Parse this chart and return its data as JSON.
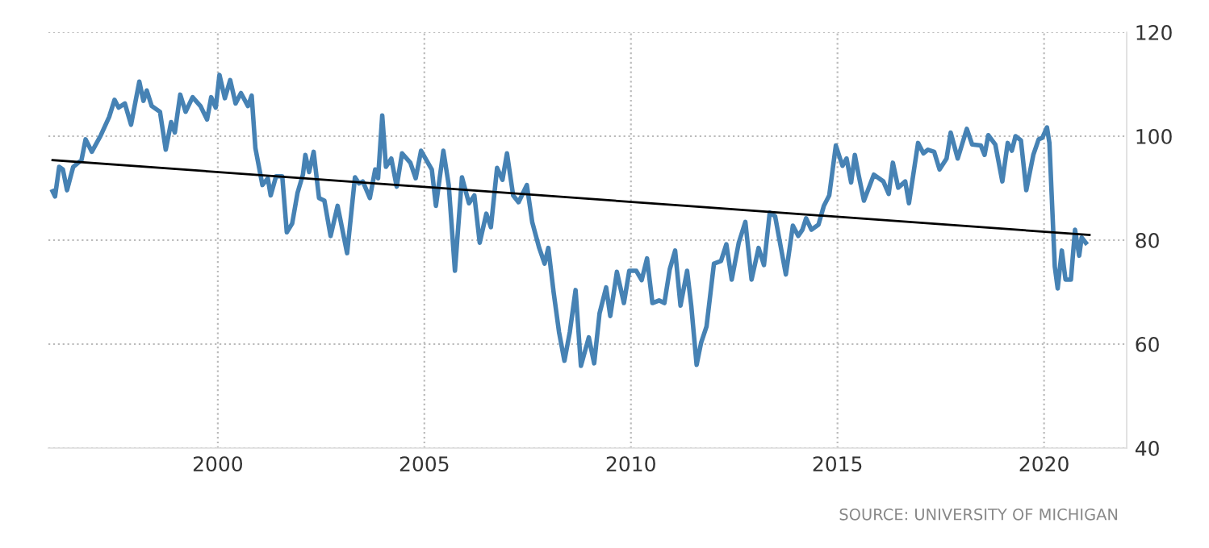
{
  "chart_data": {
    "type": "line",
    "series": [
      {
        "color": "#4682b4",
        "x": [
          1996.0,
          1996.06,
          1996.16,
          1996.25,
          1996.35,
          1996.5,
          1996.7,
          1996.8,
          1996.95,
          1997.17,
          1997.37,
          1997.5,
          1997.6,
          1997.75,
          1997.9,
          1998.1,
          1998.2,
          1998.28,
          1998.4,
          1998.6,
          1998.74,
          1998.87,
          1998.96,
          1999.09,
          1999.22,
          1999.39,
          1999.58,
          1999.74,
          1999.84,
          1999.95,
          2000.04,
          2000.17,
          2000.3,
          2000.43,
          2000.56,
          2000.73,
          2000.82,
          2000.91,
          2001.08,
          2001.21,
          2001.28,
          2001.41,
          2001.56,
          2001.67,
          2001.8,
          2001.93,
          2002.06,
          2002.12,
          2002.21,
          2002.32,
          2002.45,
          2002.58,
          2002.73,
          2002.9,
          2003.13,
          2003.32,
          2003.42,
          2003.51,
          2003.68,
          2003.81,
          2003.88,
          2003.98,
          2004.07,
          2004.2,
          2004.33,
          2004.46,
          2004.66,
          2004.79,
          2004.92,
          2005.18,
          2005.28,
          2005.46,
          2005.59,
          2005.74,
          2005.91,
          2006.08,
          2006.21,
          2006.34,
          2006.5,
          2006.61,
          2006.76,
          2006.89,
          2007.0,
          2007.15,
          2007.28,
          2007.39,
          2007.48,
          2007.61,
          2007.78,
          2007.91,
          2008.0,
          2008.13,
          2008.26,
          2008.39,
          2008.52,
          2008.66,
          2008.79,
          2008.98,
          2009.11,
          2009.24,
          2009.4,
          2009.5,
          2009.66,
          2009.83,
          2009.96,
          2010.13,
          2010.26,
          2010.39,
          2010.52,
          2010.68,
          2010.81,
          2010.94,
          2011.07,
          2011.2,
          2011.36,
          2011.46,
          2011.59,
          2011.7,
          2011.83,
          2012.01,
          2012.18,
          2012.31,
          2012.44,
          2012.61,
          2012.77,
          2012.92,
          2013.09,
          2013.22,
          2013.36,
          2013.49,
          2013.62,
          2013.75,
          2013.92,
          2014.05,
          2014.15,
          2014.24,
          2014.37,
          2014.54,
          2014.67,
          2014.8,
          2014.96,
          2015.12,
          2015.22,
          2015.33,
          2015.42,
          2015.51,
          2015.64,
          2015.88,
          2016.11,
          2016.24,
          2016.34,
          2016.47,
          2016.64,
          2016.73,
          2016.95,
          2017.08,
          2017.19,
          2017.34,
          2017.47,
          2017.64,
          2017.74,
          2017.91,
          2018.13,
          2018.26,
          2018.47,
          2018.56,
          2018.65,
          2018.82,
          2018.99,
          2019.12,
          2019.22,
          2019.31,
          2019.44,
          2019.57,
          2019.74,
          2019.87,
          2019.96,
          2020.07,
          2020.13,
          2020.26,
          2020.33,
          2020.43,
          2020.52,
          2020.65,
          2020.75,
          2020.85,
          2020.91,
          2021.01
        ],
        "values": [
          89.4,
          88.4,
          94.1,
          93.6,
          89.6,
          94.1,
          95.4,
          99.4,
          97,
          100.2,
          103.7,
          107,
          105.5,
          106.3,
          102.2,
          110.5,
          106.8,
          108.8,
          105.8,
          104.7,
          97.4,
          102.7,
          100.7,
          108,
          104.7,
          107.5,
          105.8,
          103.2,
          107.5,
          105.5,
          111.8,
          107.3,
          110.8,
          106.3,
          108.3,
          105.8,
          107.8,
          97.7,
          90.6,
          91.9,
          88.6,
          92.3,
          92.3,
          81.5,
          83.2,
          89.1,
          92.6,
          96.4,
          93.1,
          97,
          88.1,
          87.6,
          80.8,
          86.6,
          77.5,
          92.1,
          90.9,
          91.3,
          88.1,
          93.6,
          91.9,
          104,
          94.1,
          95.7,
          90.3,
          96.7,
          94.9,
          91.9,
          97.2,
          93.6,
          86.6,
          97.2,
          90.6,
          74.1,
          92.1,
          87.1,
          88.6,
          79.5,
          85.1,
          82.5,
          93.9,
          91.6,
          96.7,
          88.6,
          87.3,
          89.1,
          90.6,
          83.5,
          78.5,
          75.5,
          78.5,
          69.9,
          62.3,
          56.8,
          62.3,
          70.4,
          55.8,
          61.3,
          56.3,
          65.9,
          70.9,
          65.4,
          73.9,
          67.9,
          74.1,
          74.1,
          72.3,
          76.5,
          67.9,
          68.4,
          67.9,
          74.4,
          78,
          67.4,
          74.1,
          67.4,
          56,
          60.3,
          63.4,
          75.5,
          76,
          79.2,
          72.4,
          79.5,
          83.5,
          72.4,
          78.5,
          75.2,
          85.3,
          84.6,
          79,
          73.4,
          82.8,
          80.8,
          82,
          84.2,
          82,
          83,
          86.6,
          88.6,
          98.2,
          94.3,
          95.7,
          91.1,
          96.4,
          92.6,
          87.6,
          92.6,
          91.3,
          88.9,
          94.9,
          90.1,
          91.3,
          87.1,
          98.7,
          96.7,
          97.4,
          97,
          93.6,
          95.7,
          100.7,
          95.7,
          101.4,
          98.4,
          98.2,
          96.4,
          100.2,
          98.4,
          91.3,
          98.7,
          97.2,
          100,
          99.2,
          89.6,
          96.4,
          99.4,
          99.7,
          101.7,
          98.7,
          74.9,
          70.7,
          78,
          72.4,
          72.4,
          82,
          77,
          80.5,
          79.5
        ]
      },
      {
        "color": "#000000",
        "x": [
          1996.0,
          2021.1
        ],
        "values": [
          95.4,
          81.0
        ]
      }
    ],
    "xlim": [
      1995.9,
      2022.0
    ],
    "xticks": [
      2000,
      2005,
      2010,
      2015,
      2020
    ],
    "ylim": [
      40,
      120
    ],
    "yticks": [
      40,
      60,
      80,
      100,
      120
    ],
    "grid": true,
    "legend": false,
    "annotations": [
      "SOURCE: UNIVERSITY OF MICHIGAN"
    ]
  }
}
